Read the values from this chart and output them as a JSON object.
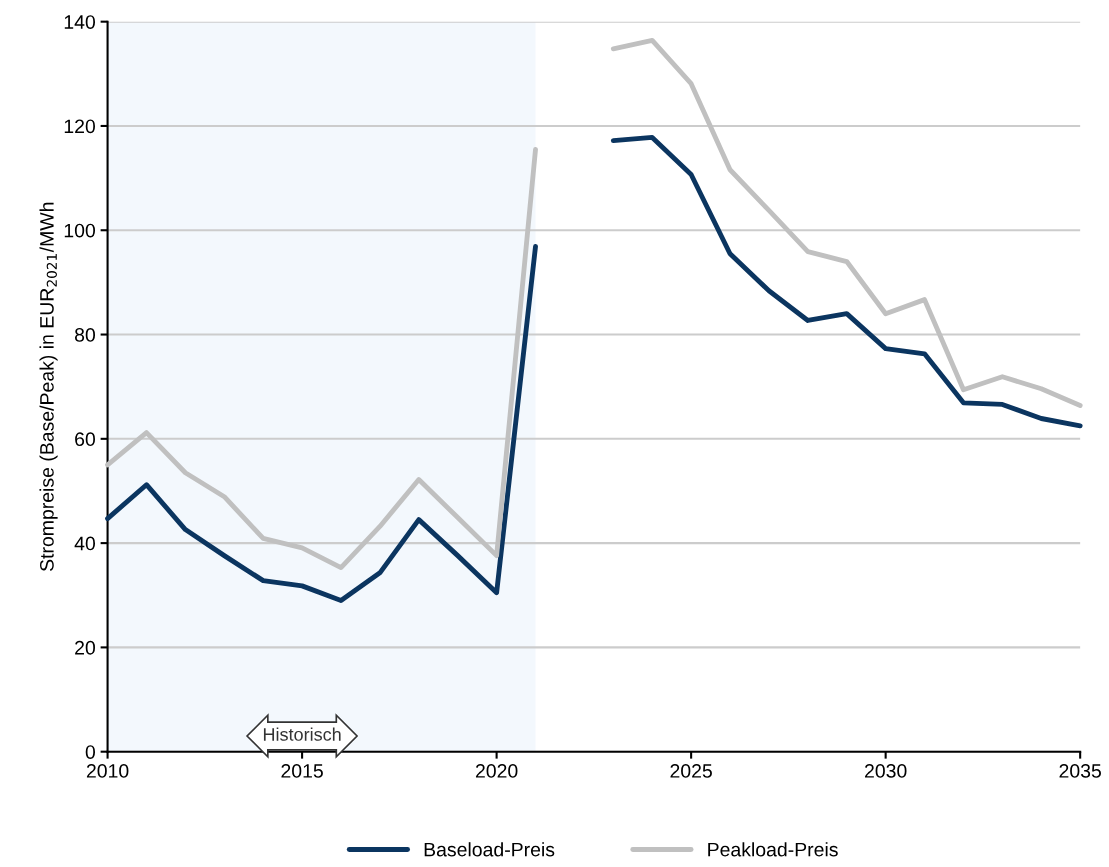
{
  "chart_data": {
    "type": "line",
    "ylabel": "Strompreise (Base/Peak) in EUR$_{2021}$/MWh",
    "x": [
      2010,
      2011,
      2012,
      2013,
      2014,
      2015,
      2016,
      2017,
      2018,
      2019,
      2020,
      2021,
      2022,
      2023,
      2024,
      2025,
      2026,
      2027,
      2028,
      2029,
      2030,
      2031,
      2032,
      2033,
      2034,
      2035
    ],
    "series": [
      {
        "name": "Baseload-Preis",
        "color": "#0b3560",
        "values": [
          44.7,
          51.2,
          42.6,
          37.6,
          32.8,
          31.8,
          29.0,
          34.3,
          44.5,
          37.6,
          30.5,
          96.9,
          null,
          117.2,
          117.8,
          110.7,
          95.5,
          88.4,
          82.7,
          84.0,
          77.3,
          76.3,
          66.9,
          66.6,
          63.9,
          62.5
        ]
      },
      {
        "name": "Peakload-Preis",
        "color": "#c0c0c0",
        "values": [
          55.0,
          61.2,
          53.5,
          48.9,
          40.9,
          39.1,
          35.3,
          43.2,
          52.2,
          44.9,
          37.6,
          115.5,
          null,
          134.8,
          136.4,
          128.1,
          111.6,
          103.8,
          95.9,
          94.0,
          84.0,
          86.7,
          69.4,
          71.9,
          69.6,
          66.4
        ]
      }
    ],
    "xlim": [
      2010,
      2035
    ],
    "xticks": [
      2010,
      2015,
      2020,
      2025,
      2030,
      2035
    ],
    "ylim": [
      0,
      140
    ],
    "yticks": [
      0,
      20,
      40,
      60,
      80,
      100,
      120,
      140
    ],
    "bands": [
      {
        "axis": "x",
        "from": 2010,
        "to": 2021,
        "label": "Historisch",
        "color": "#f3f8fd"
      }
    ],
    "grid": "y",
    "legend": "bottom",
    "line_style": "solid",
    "marker": "none"
  }
}
